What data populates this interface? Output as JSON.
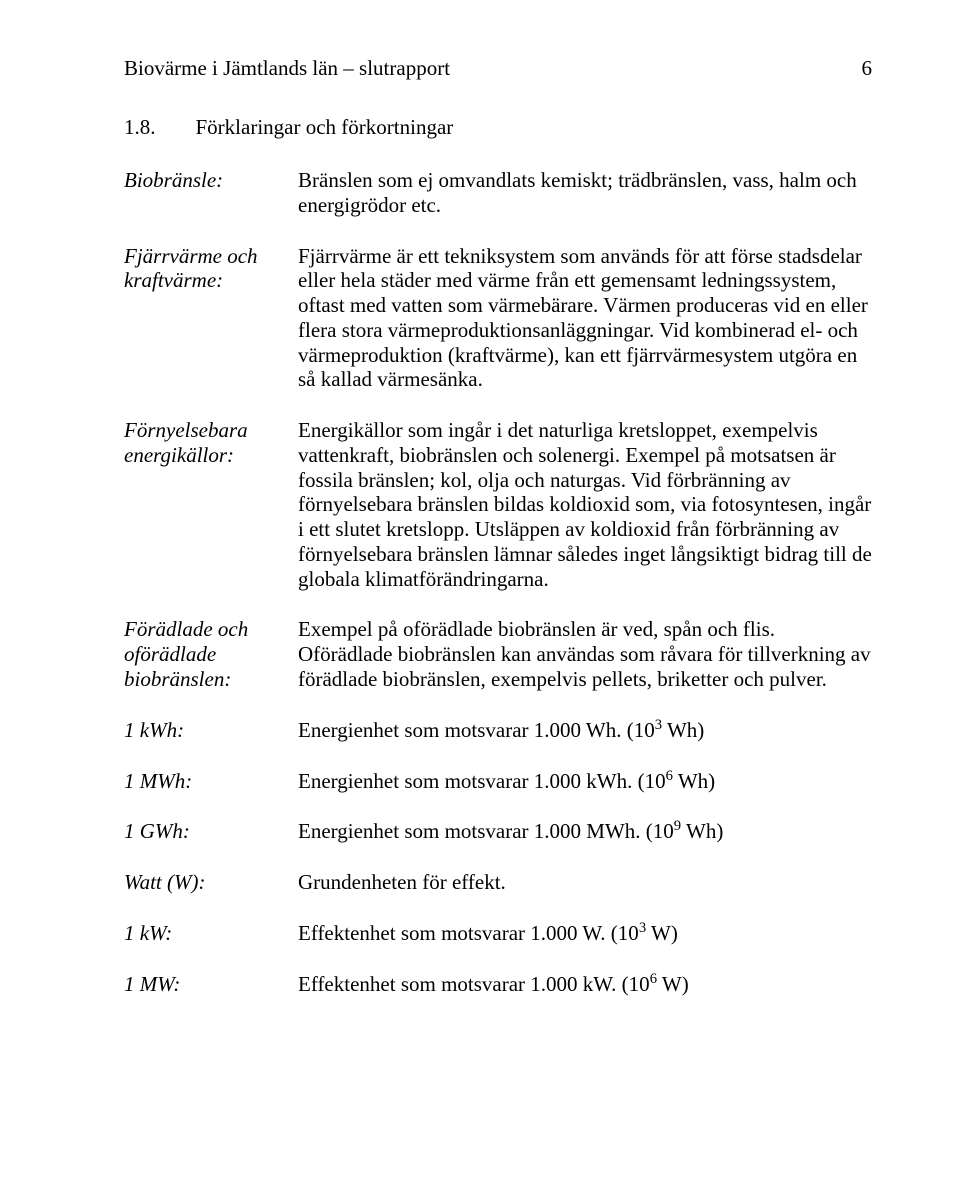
{
  "header": {
    "title": "Biovärme i Jämtlands län – slutrapport",
    "page_number": "6"
  },
  "section": {
    "number": "1.8.",
    "heading": "Förklaringar och förkortningar"
  },
  "definitions": [
    {
      "term": "Biobränsle:",
      "desc": "Bränslen som ej omvandlats kemiskt; trädbränslen, vass, halm och energigrödor etc."
    },
    {
      "term": "Fjärrvärme och kraftvärme:",
      "desc": "Fjärrvärme är ett tekniksystem som används för att förse stadsdelar eller hela städer med värme från ett gemensamt ledningssystem, oftast med vatten som värmebärare. Värmen produceras vid en eller flera stora värmeproduktionsanläggningar. Vid kombinerad el- och värmeproduktion (kraftvärme), kan ett fjärrvärmesystem utgöra en så kallad värmesänka."
    },
    {
      "term": "Förnyelsebara energikällor:",
      "desc": "Energikällor som ingår i det naturliga kretsloppet, exempelvis vattenkraft, biobränslen och solenergi. Exempel på motsatsen är fossila bränslen; kol, olja och naturgas. Vid förbränning av förnyelsebara bränslen bildas koldioxid som, via fotosyntesen, ingår i ett slutet kretslopp. Utsläppen av koldioxid från förbränning av förnyelsebara bränslen lämnar således inget långsiktigt bidrag till de globala klimatförändringarna."
    },
    {
      "term": "Förädlade och oförädlade biobränslen:",
      "desc": "Exempel på oförädlade biobränslen är ved, spån och flis. Oförädlade biobränslen kan användas som råvara för tillverkning av förädlade biobränslen, exempelvis pellets, briketter och pulver."
    },
    {
      "term": "1 kWh:",
      "desc_html": "Energienhet som motsvarar 1.000 Wh. (10<sup>3</sup> Wh)"
    },
    {
      "term": "1 MWh:",
      "desc_html": "Energienhet som motsvarar 1.000 kWh. (10<sup>6</sup> Wh)"
    },
    {
      "term": "1 GWh:",
      "desc_html": "Energienhet som motsvarar 1.000 MWh. (10<sup>9</sup> Wh)"
    },
    {
      "term": "Watt (W):",
      "desc": "Grundenheten för effekt."
    },
    {
      "term": "1 kW:",
      "desc_html": "Effektenhet som motsvarar 1.000 W. (10<sup>3</sup> W)"
    },
    {
      "term": "1 MW:",
      "desc_html": "Effektenhet som motsvarar 1.000 kW. (10<sup>6</sup> W)"
    }
  ]
}
